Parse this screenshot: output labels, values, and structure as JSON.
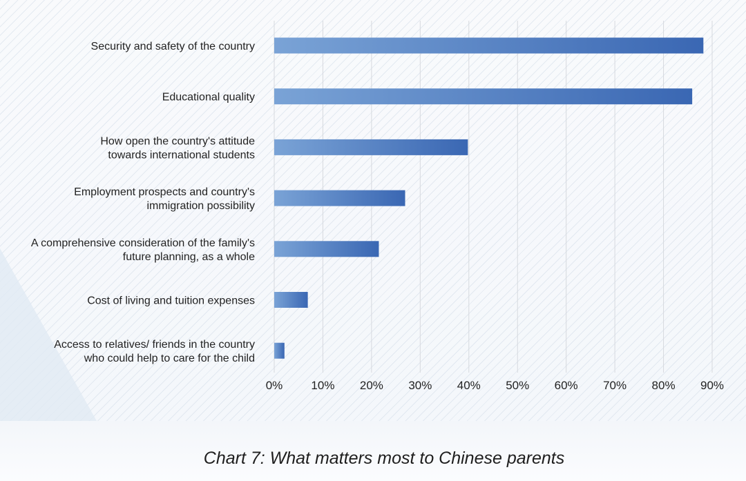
{
  "chart_data": {
    "type": "bar",
    "orientation": "horizontal",
    "title": "Chart 7: What matters most to Chinese parents",
    "categories": [
      [
        "Security and safety of the country"
      ],
      [
        "Educational quality"
      ],
      [
        "How open the country's attitude",
        "towards  international students"
      ],
      [
        "Employment prospects and country's",
        "immigration possibility"
      ],
      [
        "A comprehensive consideration of the family's",
        "future planning, as a whole"
      ],
      [
        "Cost of living and tuition expenses"
      ],
      [
        "Access to relatives/ friends in the country",
        "who could help to care for the child"
      ]
    ],
    "values": [
      88.2,
      85.9,
      39.8,
      26.9,
      21.5,
      6.9,
      2.1
    ],
    "xlim": [
      0,
      90
    ],
    "xticks": [
      0,
      10,
      20,
      30,
      40,
      50,
      60,
      70,
      80,
      90
    ],
    "xtick_labels": [
      "0%",
      "10%",
      "20%",
      "30%",
      "40%",
      "50%",
      "60%",
      "70%",
      "80%",
      "90%"
    ],
    "grid": "vertical",
    "bar_color_start": "#7aa3d6",
    "bar_color_end": "#3a67b3",
    "grid_color": "#d6d9de",
    "text_color": "#222222"
  }
}
